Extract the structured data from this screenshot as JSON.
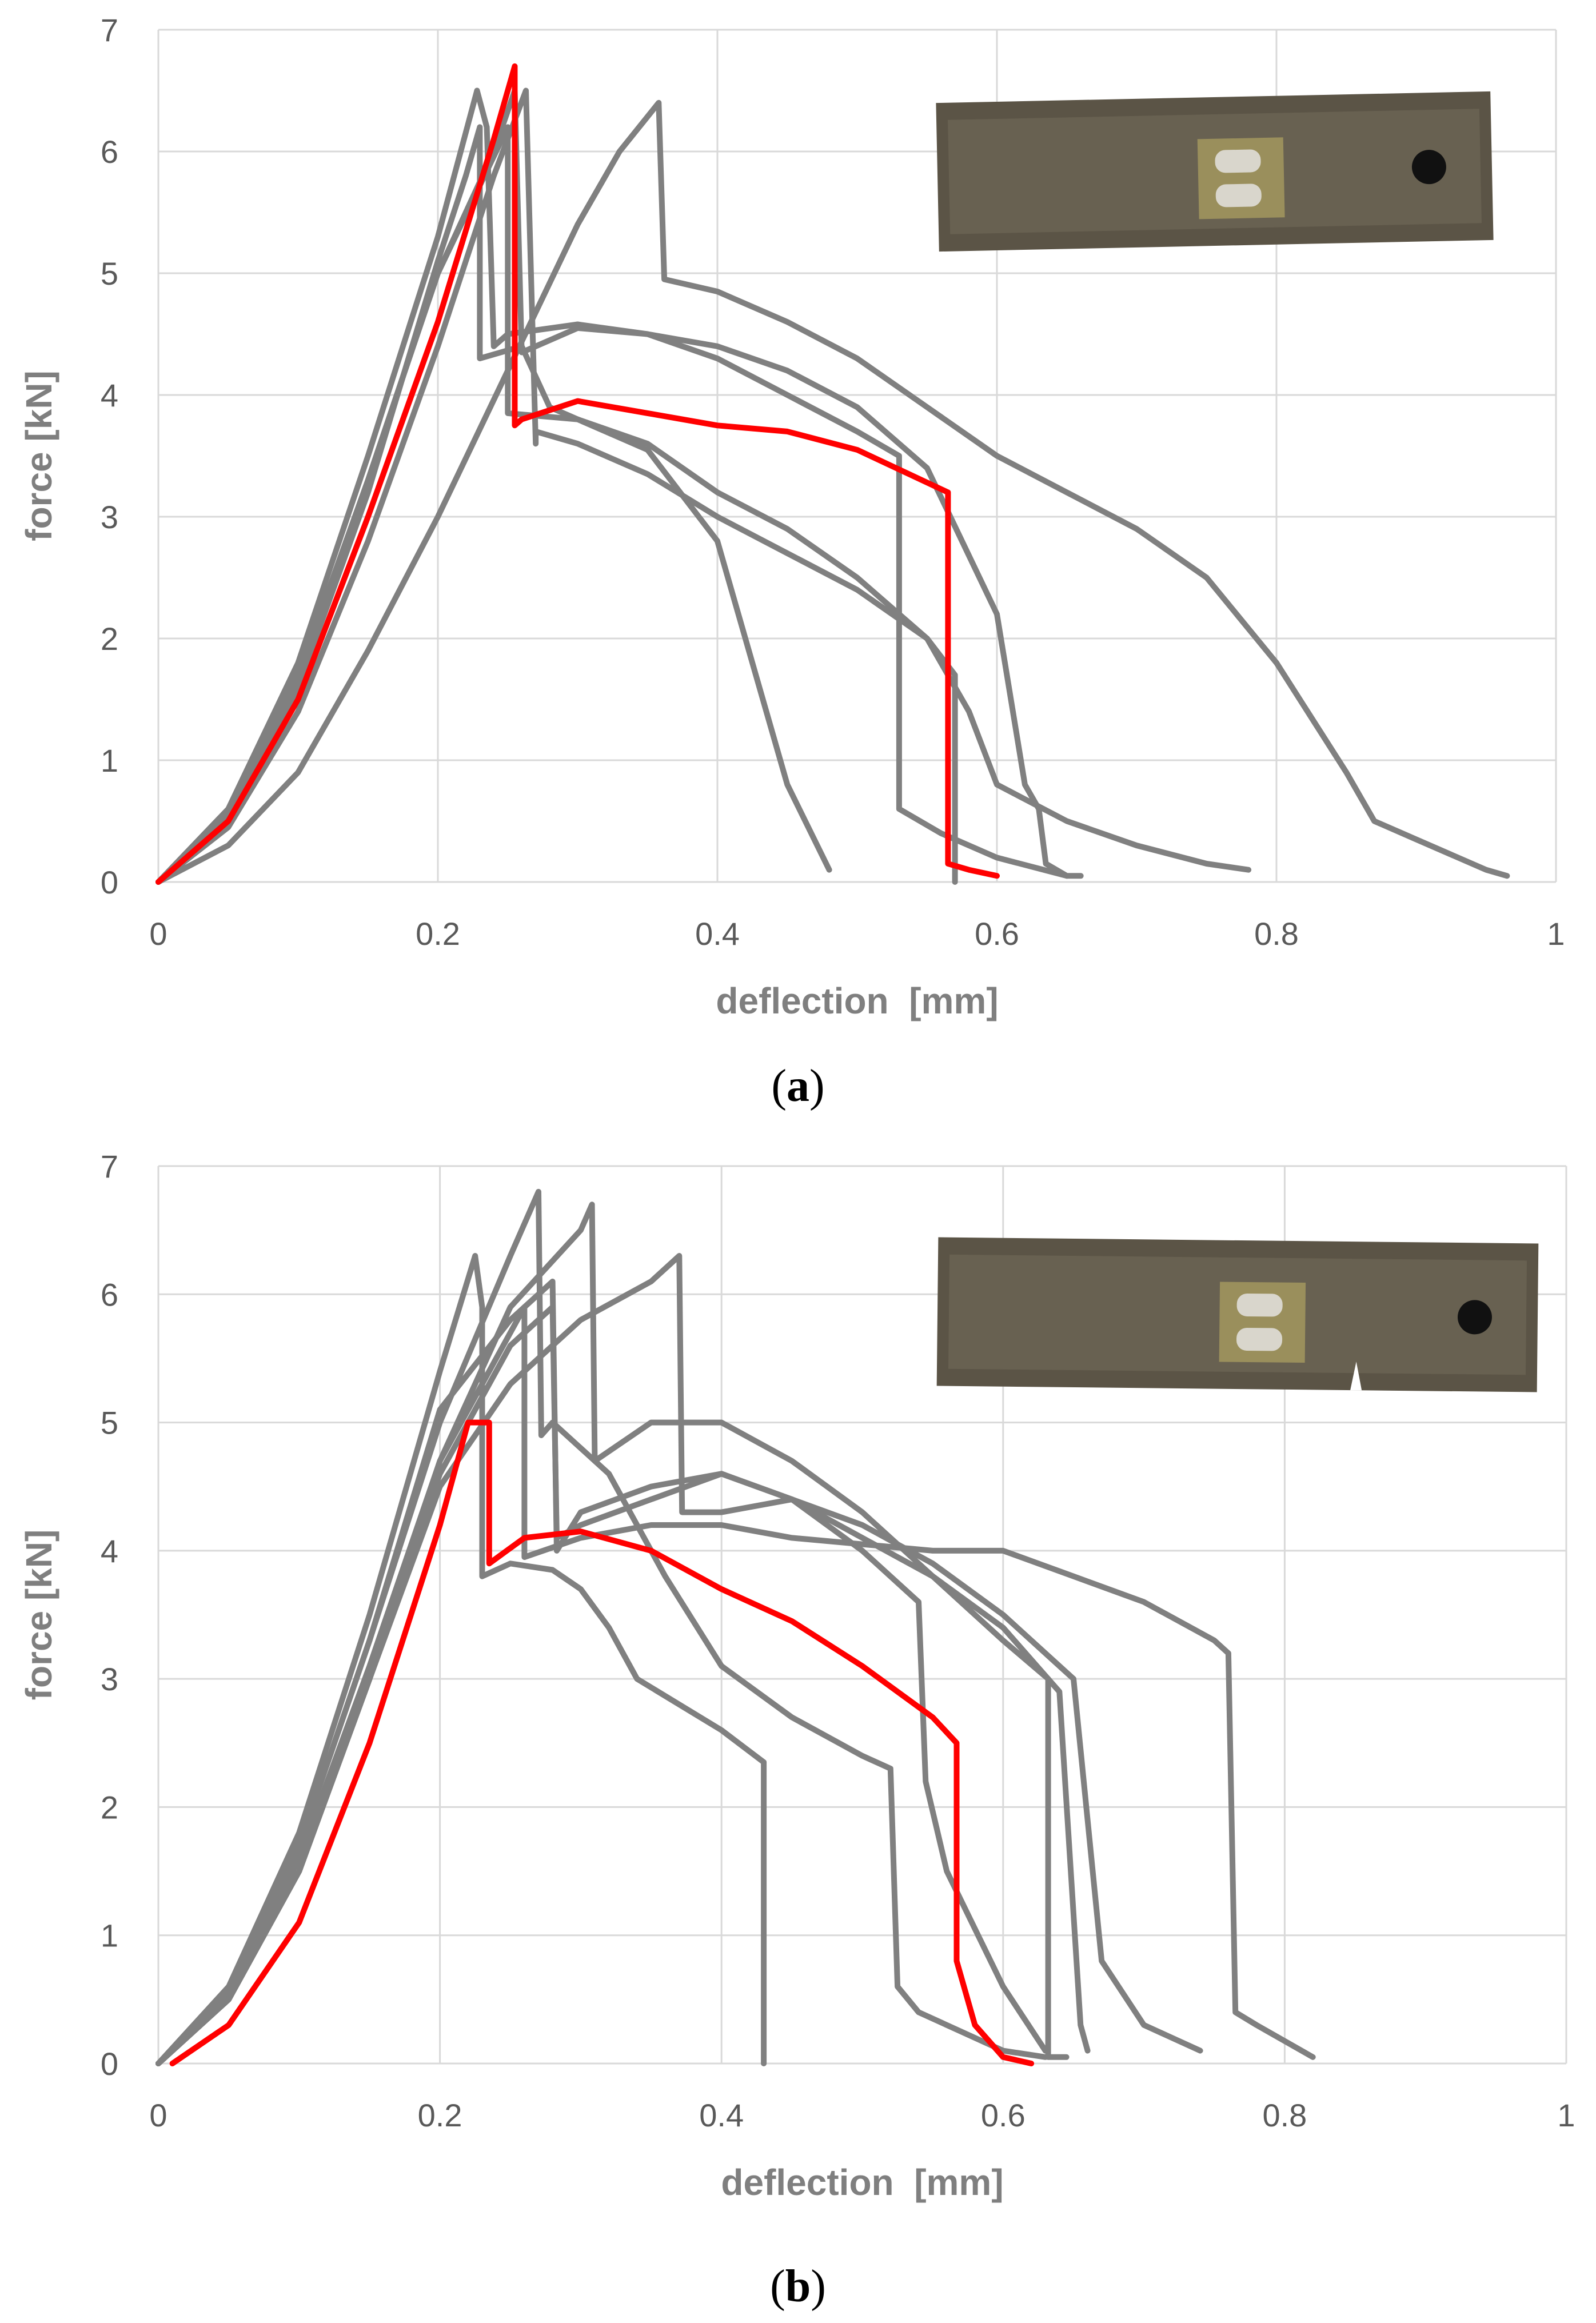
{
  "figure": {
    "panels": [
      {
        "label_open": "(",
        "label_letter": "a",
        "label_close": ")"
      },
      {
        "label_open": "(",
        "label_letter": "b",
        "label_close": ")"
      }
    ]
  },
  "chart_data": [
    {
      "type": "line",
      "panel": "a",
      "xlabel": "deflection  [mm]",
      "ylabel": "force [kN]",
      "xlim": [
        0,
        1
      ],
      "ylim": [
        0,
        7
      ],
      "xticks": [
        0,
        0.2,
        0.4,
        0.6,
        0.8,
        1
      ],
      "yticks": [
        0,
        1,
        2,
        3,
        4,
        5,
        6,
        7
      ],
      "xtick_labels": [
        "0",
        "0.2",
        "0.4",
        "0.6",
        "0.8",
        "1"
      ],
      "ytick_labels": [
        "0",
        "1",
        "2",
        "3",
        "4",
        "5",
        "6",
        "7"
      ],
      "grid": true,
      "colors": {
        "highlight": "#ff0000",
        "other": "#808080",
        "grid": "#d9d9d9",
        "tick_text": "#595959",
        "label_text": "#7f7f7f"
      },
      "inset_photo": {
        "description_icon": "steel-strip-specimen-photo",
        "crack": false
      },
      "series": [
        {
          "color": "#ff0000",
          "x": [
            0.0,
            0.05,
            0.1,
            0.15,
            0.2,
            0.24,
            0.255,
            0.255,
            0.26,
            0.3,
            0.35,
            0.4,
            0.45,
            0.5,
            0.565,
            0.565,
            0.58,
            0.6
          ],
          "y": [
            0.0,
            0.5,
            1.5,
            3.0,
            4.6,
            6.1,
            6.7,
            3.75,
            3.8,
            3.95,
            3.85,
            3.75,
            3.7,
            3.55,
            3.2,
            0.15,
            0.1,
            0.05
          ]
        },
        {
          "color": "#808080",
          "x": [
            0.0,
            0.05,
            0.1,
            0.15,
            0.2,
            0.228,
            0.235,
            0.24,
            0.25,
            0.3,
            0.35,
            0.4,
            0.45,
            0.5,
            0.53,
            0.53,
            0.56,
            0.6,
            0.65
          ],
          "y": [
            0.0,
            0.6,
            1.8,
            3.5,
            5.3,
            6.5,
            6.2,
            4.4,
            4.5,
            4.58,
            4.5,
            4.3,
            4.0,
            3.7,
            3.5,
            0.6,
            0.4,
            0.2,
            0.05
          ]
        },
        {
          "color": "#808080",
          "x": [
            0.0,
            0.05,
            0.1,
            0.15,
            0.2,
            0.22,
            0.23,
            0.23,
            0.26,
            0.28,
            0.3,
            0.35,
            0.4,
            0.45,
            0.48
          ],
          "y": [
            0.0,
            0.5,
            1.6,
            3.2,
            5.1,
            5.8,
            6.2,
            4.3,
            4.4,
            3.9,
            3.8,
            3.55,
            2.8,
            0.8,
            0.1
          ]
        },
        {
          "color": "#808080",
          "x": [
            0.0,
            0.05,
            0.1,
            0.15,
            0.2,
            0.24,
            0.263,
            0.27,
            0.27,
            0.3,
            0.35,
            0.4,
            0.45,
            0.5,
            0.55,
            0.57,
            0.57
          ],
          "y": [
            0.0,
            0.45,
            1.4,
            2.8,
            4.4,
            5.8,
            6.5,
            3.6,
            3.7,
            3.6,
            3.35,
            3.0,
            2.7,
            2.4,
            2.0,
            1.7,
            0.0
          ]
        },
        {
          "color": "#808080",
          "x": [
            0.0,
            0.05,
            0.1,
            0.15,
            0.2,
            0.25,
            0.3,
            0.33,
            0.358,
            0.362,
            0.4,
            0.45,
            0.5,
            0.55,
            0.6,
            0.65,
            0.7,
            0.75,
            0.8,
            0.85,
            0.87,
            0.9,
            0.95,
            0.965
          ],
          "y": [
            0.0,
            0.3,
            0.9,
            1.9,
            3.0,
            4.2,
            5.4,
            6.0,
            6.4,
            4.95,
            4.85,
            4.6,
            4.3,
            3.9,
            3.5,
            3.2,
            2.9,
            2.5,
            1.8,
            0.9,
            0.5,
            0.35,
            0.1,
            0.05
          ]
        },
        {
          "color": "#808080",
          "x": [
            0.0,
            0.05,
            0.1,
            0.15,
            0.2,
            0.24,
            0.255,
            0.26,
            0.3,
            0.35,
            0.4,
            0.45,
            0.5,
            0.55,
            0.6,
            0.62,
            0.63,
            0.635,
            0.65,
            0.66
          ],
          "y": [
            0.0,
            0.55,
            1.7,
            3.3,
            5.0,
            6.0,
            6.5,
            4.35,
            4.55,
            4.5,
            4.4,
            4.2,
            3.9,
            3.4,
            2.2,
            0.8,
            0.6,
            0.15,
            0.05,
            0.05
          ]
        },
        {
          "color": "#808080",
          "x": [
            0.0,
            0.05,
            0.1,
            0.15,
            0.2,
            0.25,
            0.25,
            0.3,
            0.35,
            0.4,
            0.45,
            0.5,
            0.55,
            0.58,
            0.6,
            0.65,
            0.7,
            0.75,
            0.78
          ],
          "y": [
            0.0,
            0.55,
            1.7,
            3.3,
            5.0,
            6.2,
            3.85,
            3.8,
            3.6,
            3.2,
            2.9,
            2.5,
            2.0,
            1.4,
            0.8,
            0.5,
            0.3,
            0.15,
            0.1
          ]
        }
      ]
    },
    {
      "type": "line",
      "panel": "b",
      "xlabel": "deflection  [mm]",
      "ylabel": "force [kN]",
      "xlim": [
        0,
        1
      ],
      "ylim": [
        0,
        7
      ],
      "xticks": [
        0,
        0.2,
        0.4,
        0.6,
        0.8,
        1
      ],
      "yticks": [
        0,
        1,
        2,
        3,
        4,
        5,
        6,
        7
      ],
      "xtick_labels": [
        "0",
        "0.2",
        "0.4",
        "0.6",
        "0.8",
        "1"
      ],
      "ytick_labels": [
        "0",
        "1",
        "2",
        "3",
        "4",
        "5",
        "6",
        "7"
      ],
      "grid": true,
      "colors": {
        "highlight": "#ff0000",
        "other": "#808080",
        "grid": "#d9d9d9",
        "tick_text": "#595959",
        "label_text": "#7f7f7f"
      },
      "inset_photo": {
        "description_icon": "cracked-steel-strip-specimen-photo",
        "crack": true
      },
      "series": [
        {
          "color": "#ff0000",
          "x": [
            0.01,
            0.05,
            0.1,
            0.15,
            0.2,
            0.22,
            0.235,
            0.235,
            0.26,
            0.3,
            0.35,
            0.4,
            0.45,
            0.5,
            0.55,
            0.567,
            0.567,
            0.58,
            0.6,
            0.62
          ],
          "y": [
            0.0,
            0.3,
            1.1,
            2.5,
            4.2,
            5.0,
            5.0,
            3.9,
            4.1,
            4.15,
            4.0,
            3.7,
            3.45,
            3.1,
            2.7,
            2.5,
            0.8,
            0.3,
            0.05,
            0.0
          ]
        },
        {
          "color": "#808080",
          "x": [
            0.0,
            0.05,
            0.1,
            0.15,
            0.2,
            0.225,
            0.23,
            0.23,
            0.25,
            0.28,
            0.3,
            0.32,
            0.34,
            0.4,
            0.43,
            0.43
          ],
          "y": [
            0.0,
            0.6,
            1.8,
            3.5,
            5.4,
            6.3,
            5.9,
            3.8,
            3.9,
            3.85,
            3.7,
            3.4,
            3.0,
            2.6,
            2.35,
            0.0
          ]
        },
        {
          "color": "#808080",
          "x": [
            0.0,
            0.05,
            0.1,
            0.15,
            0.2,
            0.25,
            0.27,
            0.272,
            0.28,
            0.32,
            0.36,
            0.4,
            0.45,
            0.5,
            0.52,
            0.525,
            0.54,
            0.6,
            0.63
          ],
          "y": [
            0.0,
            0.55,
            1.7,
            3.3,
            5.0,
            6.3,
            6.8,
            4.9,
            5.0,
            4.6,
            3.8,
            3.1,
            2.7,
            2.4,
            2.3,
            0.6,
            0.4,
            0.1,
            0.05
          ]
        },
        {
          "color": "#808080",
          "x": [
            0.0,
            0.05,
            0.1,
            0.15,
            0.2,
            0.25,
            0.3,
            0.308,
            0.31,
            0.35,
            0.4,
            0.45,
            0.5,
            0.55,
            0.6,
            0.632,
            0.632,
            0.645
          ],
          "y": [
            0.0,
            0.5,
            1.6,
            3.1,
            4.7,
            5.9,
            6.5,
            6.7,
            4.7,
            5.0,
            5.0,
            4.7,
            4.3,
            3.8,
            3.3,
            3.0,
            0.05,
            0.05
          ]
        },
        {
          "color": "#808080",
          "x": [
            0.0,
            0.05,
            0.1,
            0.15,
            0.2,
            0.25,
            0.28,
            0.283,
            0.3,
            0.35,
            0.4,
            0.45,
            0.5,
            0.54,
            0.545,
            0.56,
            0.6,
            0.63
          ],
          "y": [
            0.0,
            0.55,
            1.7,
            3.3,
            5.1,
            5.8,
            6.1,
            4.0,
            4.3,
            4.5,
            4.6,
            4.4,
            4.0,
            3.6,
            2.2,
            1.5,
            0.6,
            0.1
          ]
        },
        {
          "color": "#808080",
          "x": [
            0.0,
            0.05,
            0.1,
            0.15,
            0.2,
            0.25,
            0.28,
            0.283,
            0.3,
            0.35,
            0.4,
            0.45,
            0.5,
            0.55,
            0.6,
            0.64,
            0.655,
            0.66
          ],
          "y": [
            0.0,
            0.5,
            1.5,
            3.0,
            4.6,
            5.6,
            5.9,
            4.1,
            4.2,
            4.4,
            4.6,
            4.4,
            4.1,
            3.8,
            3.4,
            2.9,
            0.3,
            0.1
          ]
        },
        {
          "color": "#808080",
          "x": [
            0.0,
            0.05,
            0.1,
            0.15,
            0.2,
            0.25,
            0.3,
            0.35,
            0.37,
            0.372,
            0.4,
            0.45,
            0.5,
            0.55,
            0.6,
            0.65,
            0.67,
            0.7,
            0.74
          ],
          "y": [
            0.0,
            0.5,
            1.5,
            3.0,
            4.5,
            5.3,
            5.8,
            6.1,
            6.3,
            4.3,
            4.3,
            4.4,
            4.2,
            3.9,
            3.5,
            3.0,
            0.8,
            0.3,
            0.1
          ]
        },
        {
          "color": "#808080",
          "x": [
            0.0,
            0.05,
            0.1,
            0.15,
            0.2,
            0.24,
            0.26,
            0.26,
            0.3,
            0.35,
            0.4,
            0.45,
            0.5,
            0.55,
            0.6,
            0.65,
            0.7,
            0.75,
            0.76,
            0.765,
            0.78,
            0.82
          ],
          "y": [
            0.0,
            0.5,
            1.5,
            3.0,
            4.7,
            5.5,
            5.9,
            3.95,
            4.1,
            4.2,
            4.2,
            4.1,
            4.05,
            4.0,
            4.0,
            3.8,
            3.6,
            3.3,
            3.2,
            0.4,
            0.3,
            0.05
          ]
        }
      ]
    }
  ]
}
